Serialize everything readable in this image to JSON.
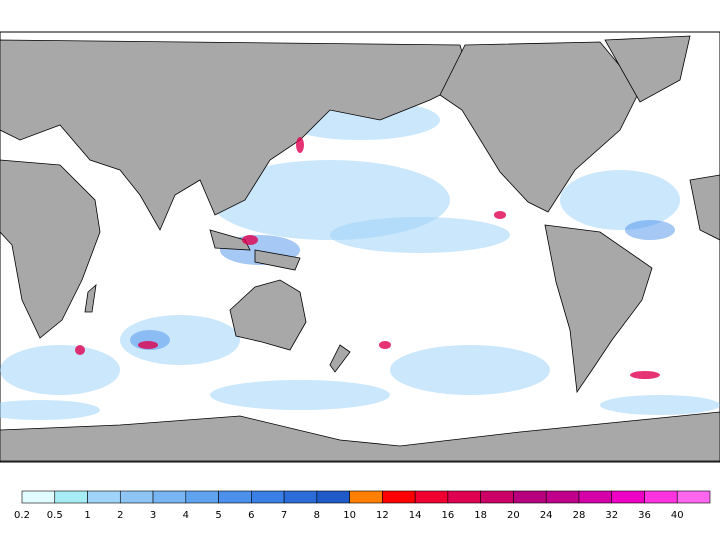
{
  "legend": {
    "levels": [
      0.2,
      0.5,
      1,
      2,
      3,
      4,
      5,
      6,
      7,
      8,
      10,
      12,
      14,
      16,
      18,
      20,
      24,
      28,
      32,
      36,
      40
    ],
    "colors": [
      "#e1fcff",
      "#a5ecf4",
      "#9fd4f8",
      "#8fc5f5",
      "#78b5f3",
      "#5fa3ef",
      "#4b91ec",
      "#3a7fe6",
      "#2b6cd8",
      "#1e5bc8",
      "#ff7f00",
      "#ff0000",
      "#f00030",
      "#e00050",
      "#cc0066",
      "#b8007e",
      "#c0008c",
      "#d600a8",
      "#ee00c4",
      "#ff33e0",
      "#ff66f0"
    ]
  }
}
